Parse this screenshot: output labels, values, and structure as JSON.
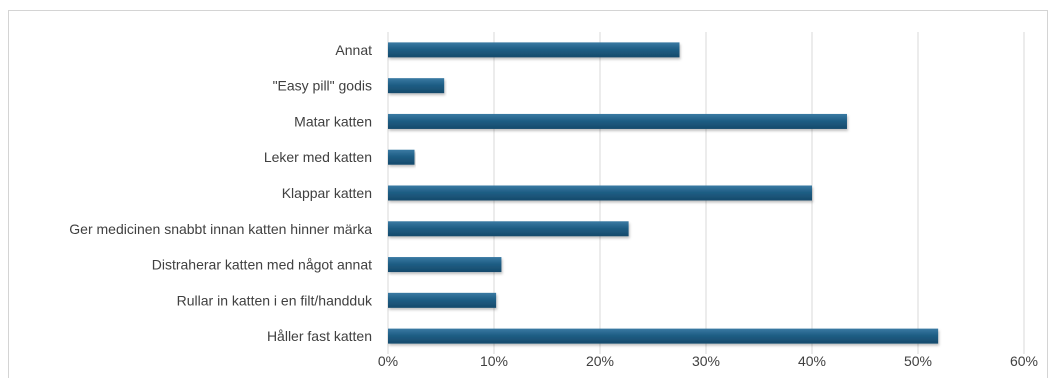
{
  "chart_data": {
    "type": "bar",
    "orientation": "horizontal",
    "categories": [
      "Annat",
      "\"Easy pill\" godis",
      "Matar katten",
      "Leker med katten",
      "Klappar katten",
      "Ger medicinen snabbt innan katten hinner märka",
      "Distraherar katten med något annat",
      "Rullar in katten i en filt/handduk",
      "Håller fast katten"
    ],
    "values": [
      27.5,
      5.3,
      43.3,
      2.5,
      40.0,
      22.7,
      10.7,
      10.2,
      51.9
    ],
    "x_ticks": [
      "0%",
      "10%",
      "20%",
      "30%",
      "40%",
      "50%",
      "60%"
    ],
    "xlim": [
      0,
      60
    ],
    "grid": true,
    "bar_color": "#1f5e85",
    "grid_color": "#d9d9d9",
    "title": "",
    "xlabel": "",
    "ylabel": ""
  }
}
